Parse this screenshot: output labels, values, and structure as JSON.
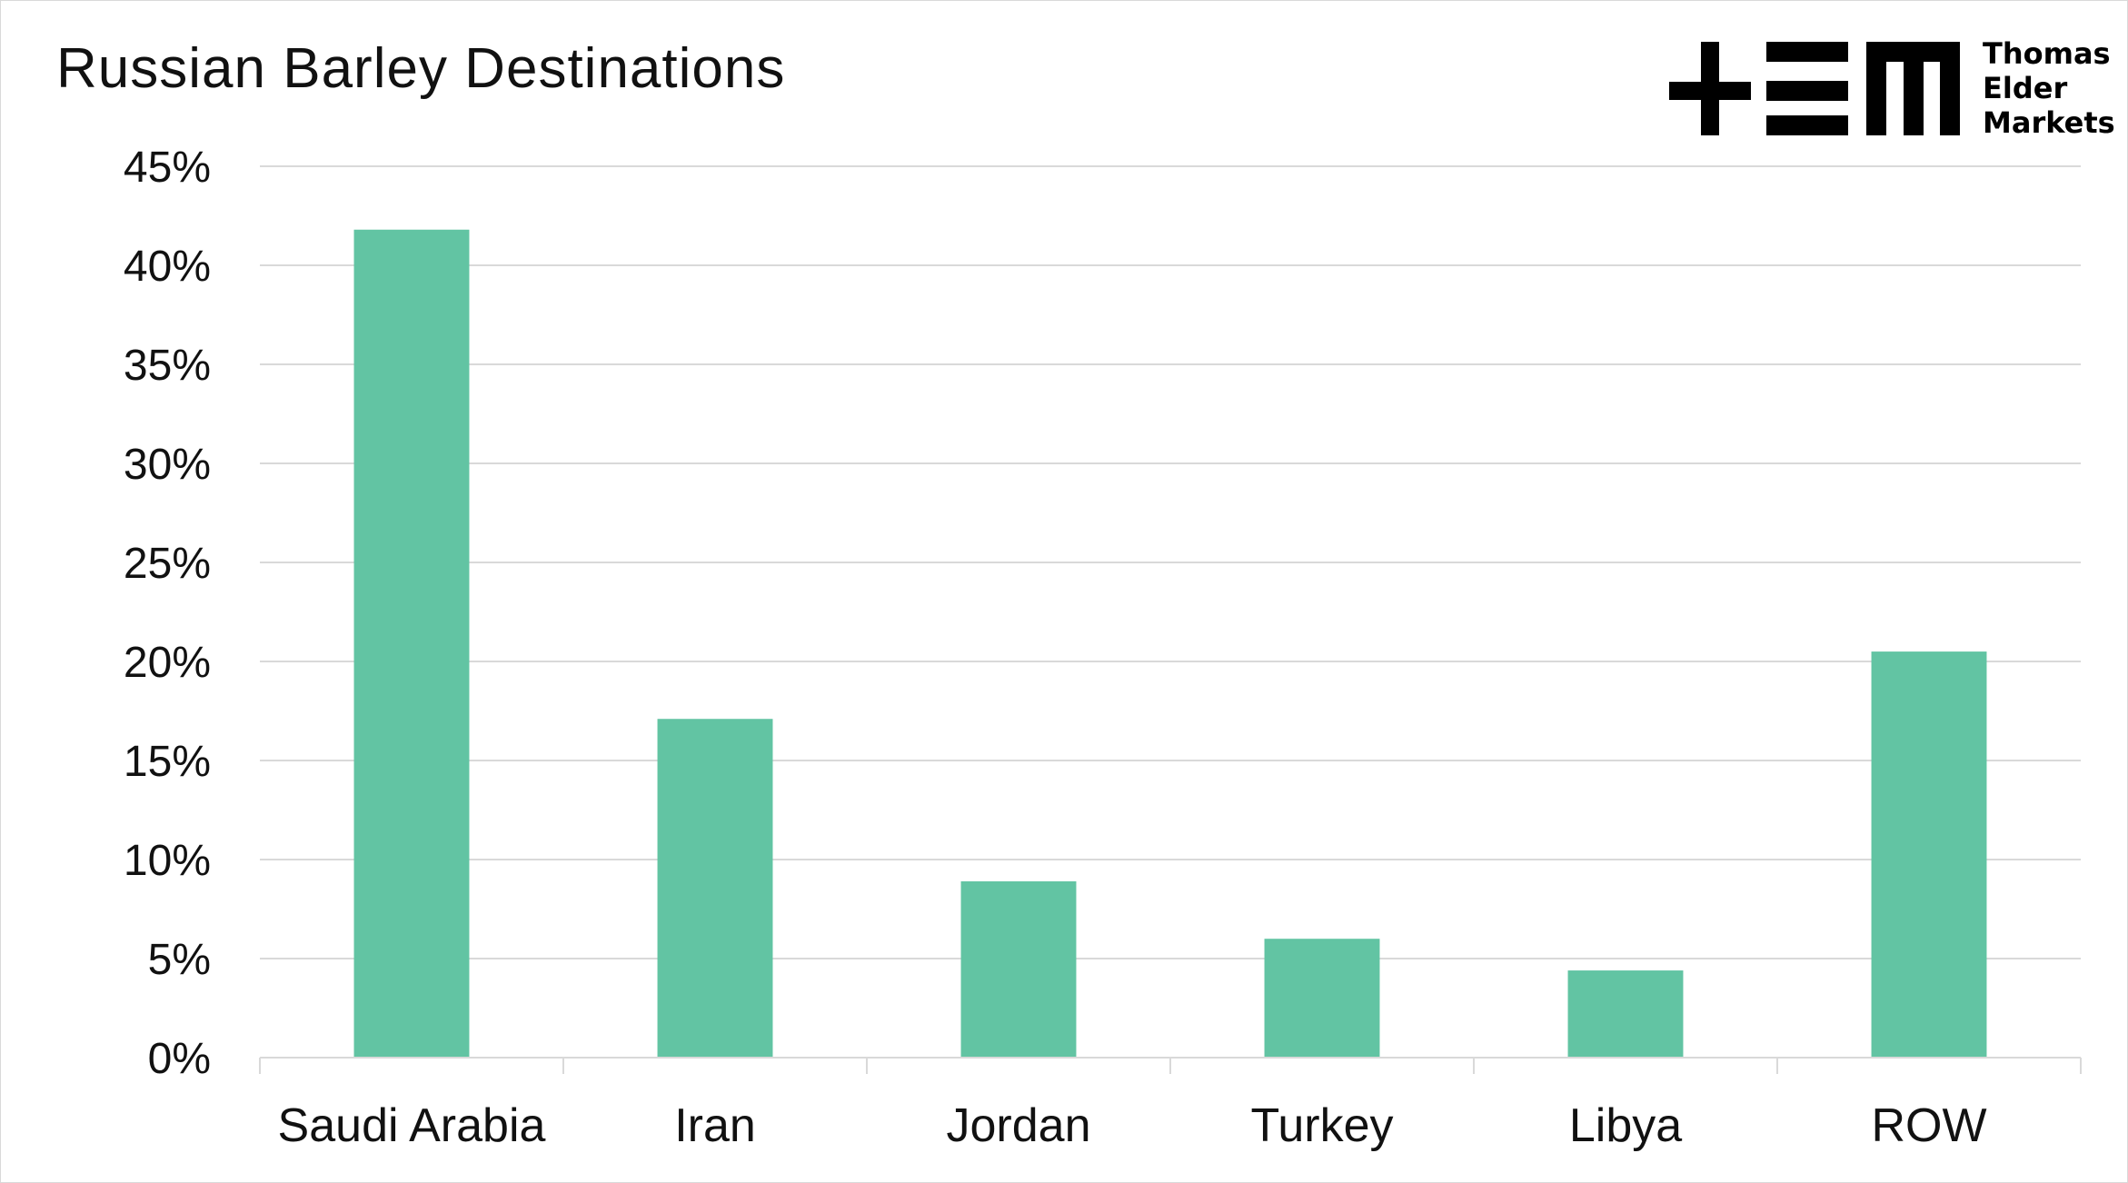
{
  "chart_data": {
    "type": "bar",
    "title": "Russian Barley Destinations",
    "categories": [
      "Saudi Arabia",
      "Iran",
      "Jordan",
      "Turkey",
      "Libya",
      "ROW"
    ],
    "values": [
      41.8,
      17.1,
      8.9,
      6.0,
      4.4,
      20.5
    ],
    "value_unit": "%",
    "xlabel": "",
    "ylabel": "",
    "ylim": [
      0,
      45
    ],
    "yticks": [
      0,
      5,
      10,
      15,
      20,
      25,
      30,
      35,
      40,
      45
    ],
    "ytick_labels": [
      "0%",
      "5%",
      "10%",
      "15%",
      "20%",
      "25%",
      "30%",
      "35%",
      "40%",
      "45%"
    ],
    "grid": true,
    "legend": "none",
    "bar_color": "#62c4a3"
  },
  "logo": {
    "lines": [
      "Thomas",
      "Elder",
      "Markets"
    ]
  }
}
